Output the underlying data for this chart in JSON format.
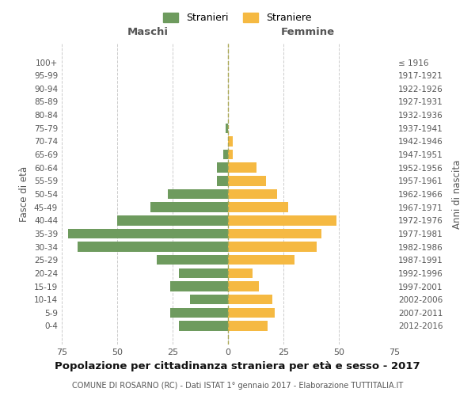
{
  "age_groups": [
    "0-4",
    "5-9",
    "10-14",
    "15-19",
    "20-24",
    "25-29",
    "30-34",
    "35-39",
    "40-44",
    "45-49",
    "50-54",
    "55-59",
    "60-64",
    "65-69",
    "70-74",
    "75-79",
    "80-84",
    "85-89",
    "90-94",
    "95-99",
    "100+"
  ],
  "birth_years": [
    "2012-2016",
    "2007-2011",
    "2002-2006",
    "1997-2001",
    "1992-1996",
    "1987-1991",
    "1982-1986",
    "1977-1981",
    "1972-1976",
    "1967-1971",
    "1962-1966",
    "1957-1961",
    "1952-1956",
    "1947-1951",
    "1942-1946",
    "1937-1941",
    "1932-1936",
    "1927-1931",
    "1922-1926",
    "1917-1921",
    "≤ 1916"
  ],
  "males": [
    22,
    26,
    17,
    26,
    22,
    32,
    68,
    72,
    50,
    35,
    27,
    5,
    5,
    2,
    0,
    1,
    0,
    0,
    0,
    0,
    0
  ],
  "females": [
    18,
    21,
    20,
    14,
    11,
    30,
    40,
    42,
    49,
    27,
    22,
    17,
    13,
    2,
    2,
    0,
    0,
    0,
    0,
    0,
    0
  ],
  "male_color": "#6e9b5e",
  "female_color": "#f5b942",
  "background_color": "#ffffff",
  "grid_color": "#cccccc",
  "title": "Popolazione per cittadinanza straniera per età e sesso - 2017",
  "subtitle": "COMUNE DI ROSARNO (RC) - Dati ISTAT 1° gennaio 2017 - Elaborazione TUTTITALIA.IT",
  "xlabel_left": "Maschi",
  "xlabel_right": "Femmine",
  "ylabel_left": "Fasce di età",
  "ylabel_right": "Anni di nascita",
  "legend_male": "Stranieri",
  "legend_female": "Straniere",
  "xlim": 75,
  "bar_height": 0.75
}
